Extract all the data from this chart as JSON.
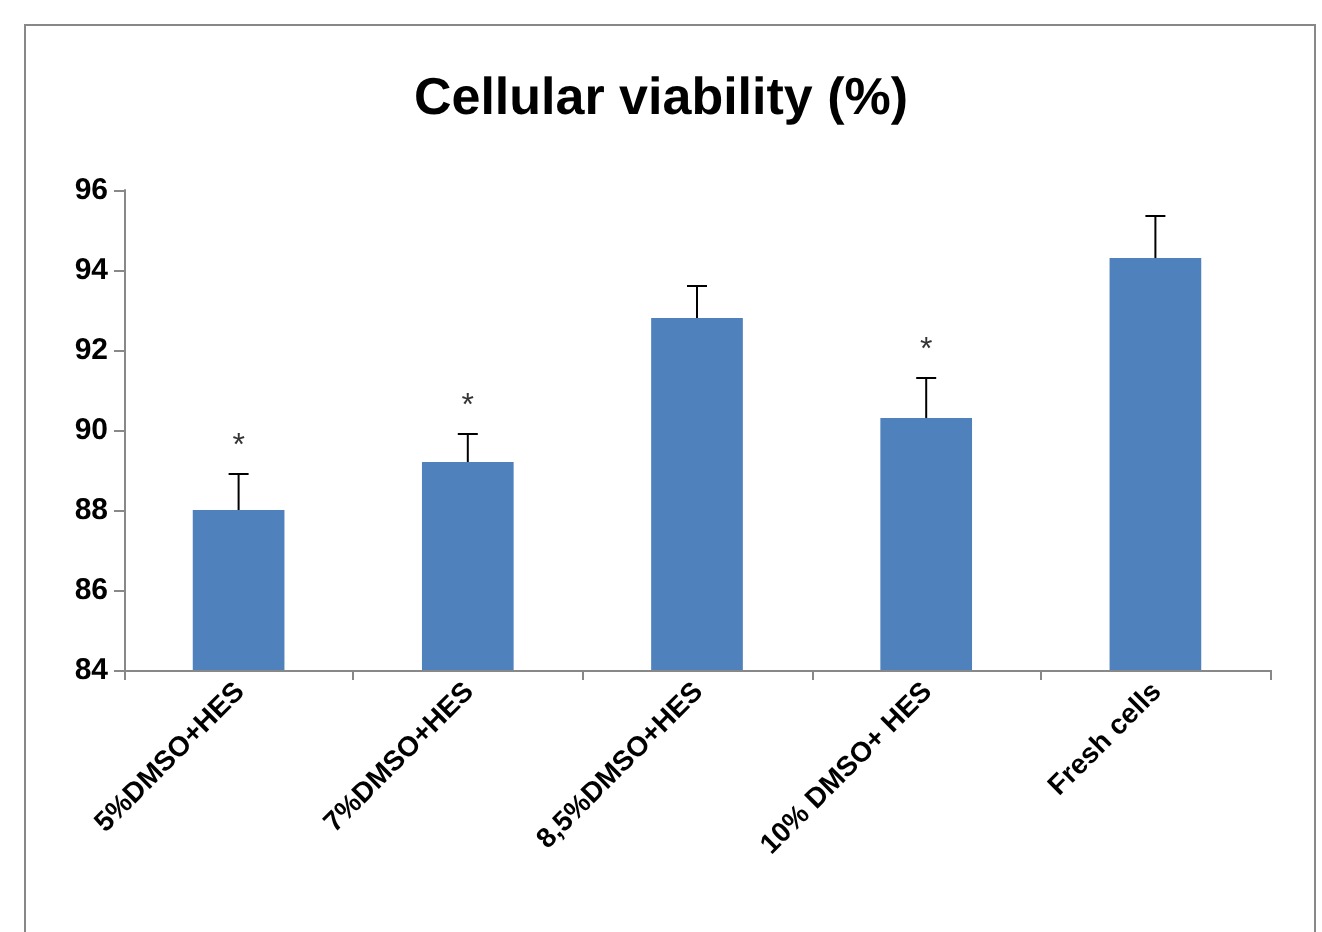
{
  "chart_data": {
    "type": "bar",
    "title": "Cellular viability (%)",
    "categories": [
      "5%DMSO+HES",
      "7%DMSO+HES",
      "8,5%DMSO+HES",
      "10% DMSO+ HES",
      "Fresh cells"
    ],
    "values": [
      88.0,
      89.2,
      92.8,
      90.3,
      94.3
    ],
    "errors": [
      [
        88.0,
        88.9
      ],
      [
        89.2,
        89.9
      ],
      [
        92.8,
        93.6
      ],
      [
        90.3,
        91.3
      ],
      [
        94.3,
        95.35
      ]
    ],
    "color": "#4f81bd",
    "ylim": [
      84,
      96
    ],
    "yticks": [
      84,
      86,
      88,
      90,
      92,
      94,
      96
    ],
    "grid": false,
    "annotations": [
      {
        "text": "*",
        "x": "5%DMSO+HES",
        "y": 88.9
      },
      {
        "text": "*",
        "x": "7%DMSO+HES",
        "y": 89.9
      },
      {
        "text": "*",
        "x": "10% DMSO+ HES",
        "y": 91.3
      }
    ]
  }
}
